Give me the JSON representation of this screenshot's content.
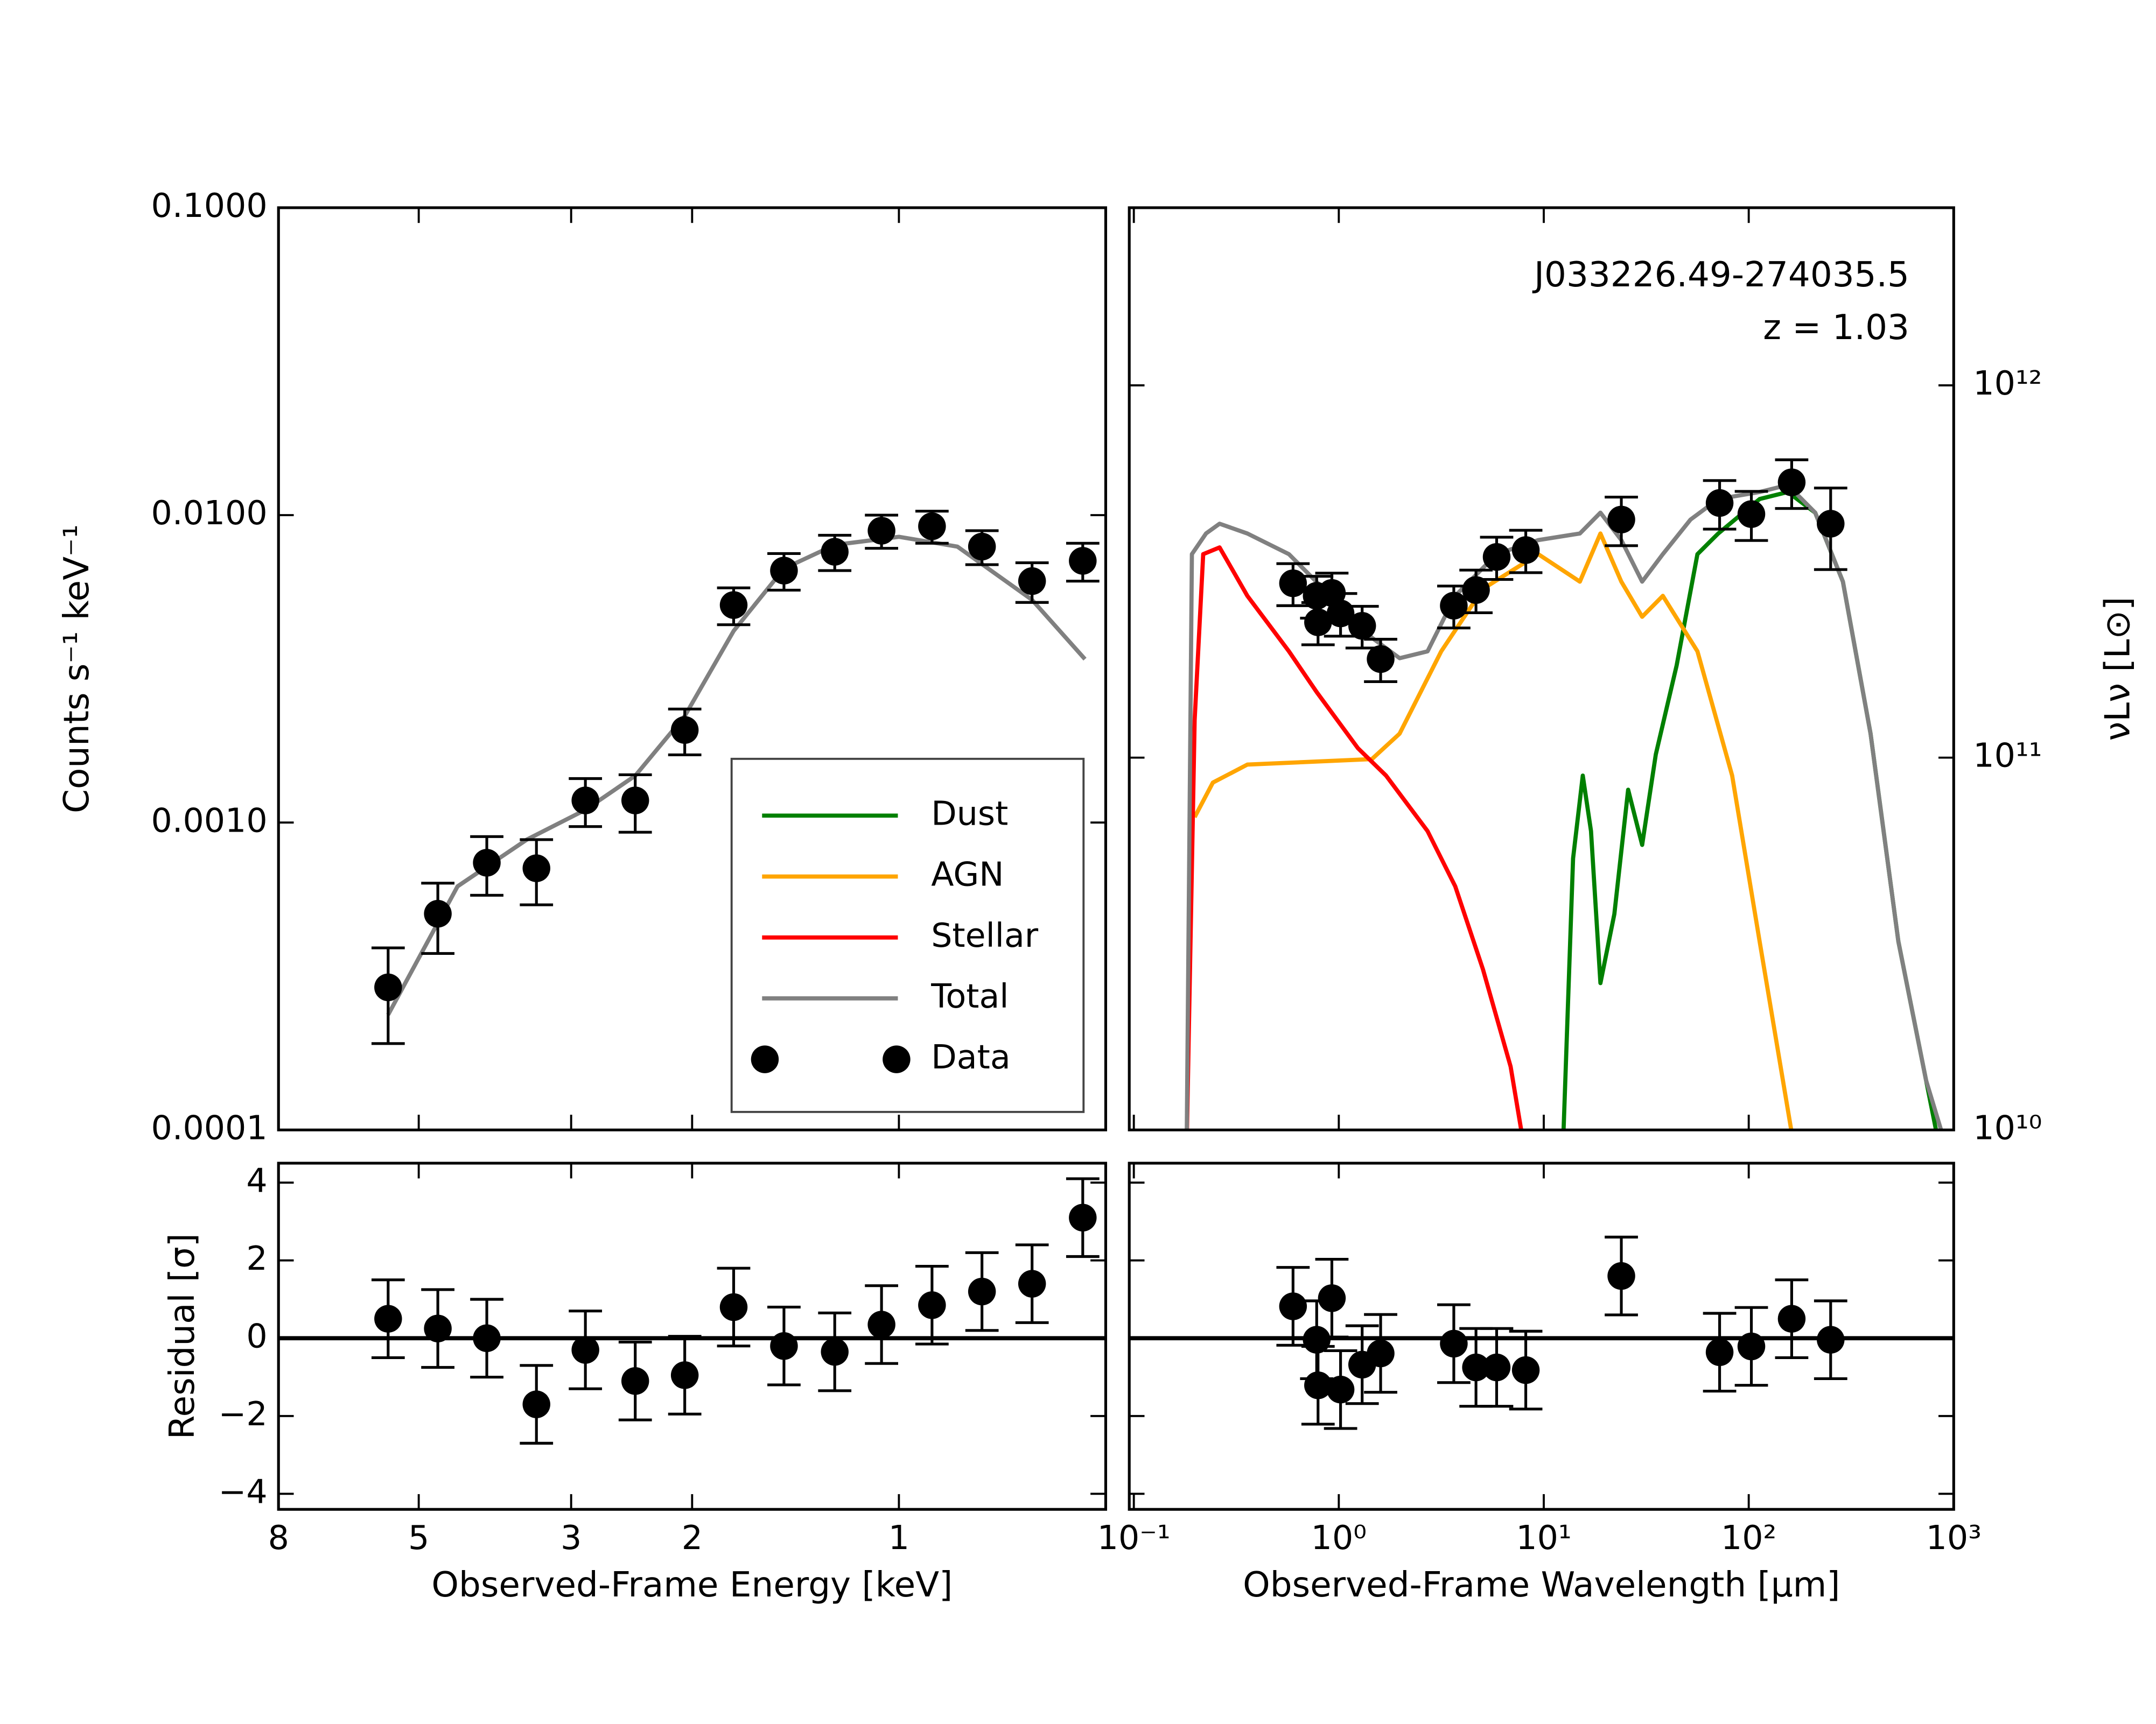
{
  "chart_data": [
    {
      "type": "scatter",
      "ylabel": "Counts s⁻¹ keV⁻¹",
      "log_x": true,
      "log_y": true,
      "xlim": [
        8,
        0.5
      ],
      "xticks": [
        8,
        5,
        3,
        2,
        1
      ],
      "ylim": [
        0.0001,
        0.1
      ],
      "yticks": [
        {
          "value": 0.0001,
          "label": "0.0001"
        },
        {
          "value": 0.001,
          "label": "0.0010"
        },
        {
          "value": 0.01,
          "label": "0.0100"
        },
        {
          "value": 0.1,
          "label": "0.1000"
        }
      ],
      "series": [
        {
          "color": "#808080",
          "x": [
            5.54,
            4.39,
            3.48,
            2.86,
            2.42,
            2.05,
            1.74,
            1.47,
            1.24,
            1.0,
            0.822,
            0.64,
            0.536
          ],
          "values": [
            0.000237,
            0.00062,
            0.00088,
            0.0011,
            0.00142,
            0.00222,
            0.0042,
            0.0067,
            0.008,
            0.0085,
            0.0079,
            0.0053,
            0.0034
          ]
        }
      ],
      "points": {
        "color": "#000000",
        "x": [
          5.54,
          4.69,
          3.98,
          3.37,
          2.86,
          2.42,
          2.05,
          1.74,
          1.47,
          1.24,
          1.06,
          0.895,
          0.757,
          0.64,
          0.54
        ],
        "values": [
          0.000291,
          0.000505,
          0.00074,
          0.00071,
          0.00118,
          0.00118,
          0.002,
          0.0051,
          0.0066,
          0.0076,
          0.0089,
          0.0092,
          0.0079,
          0.0061,
          0.0071
        ],
        "errors": [
          0.0001,
          0.00013,
          0.00016,
          0.00017,
          0.00021,
          0.00025,
          0.00034,
          0.0007,
          0.0009,
          0.001,
          0.0011,
          0.0011,
          0.001,
          0.0009,
          0.001
        ]
      }
    },
    {
      "type": "scatter",
      "ylabel": "νLν [L⊙]",
      "yaxis": "right",
      "log_x": true,
      "log_y": true,
      "legend": "lower right",
      "annotations": [
        "J033226.49-274035.5",
        "z = 1.03"
      ],
      "xlim": [
        0.095,
        1000
      ],
      "xticks": [
        0.1,
        1,
        10,
        100,
        1000
      ],
      "ylim": [
        10000000000.0,
        3000000000000.0
      ],
      "yticks": [
        {
          "value": 10000000000.0,
          "label": "10¹⁰"
        },
        {
          "value": 100000000000.0,
          "label": "10¹¹"
        },
        {
          "value": 1000000000000.0,
          "label": "10¹²"
        }
      ],
      "series": [
        {
          "name": "Dust",
          "color": "#008000",
          "x": [
            12.4,
            13.9,
            15.5,
            17.0,
            18.9,
            22.1,
            25.8,
            30.2,
            35.2,
            44.5,
            56.2,
            71.0,
            113,
            155,
            211,
            288,
            393,
            537,
            733,
            855
          ],
          "values": [
            8900000000.0,
            53600000000.0,
            89500000000.0,
            63500000000.0,
            24800000000.0,
            38000000000.0,
            82000000000.0,
            58300000000.0,
            102000000000.0,
            177000000000.0,
            352000000000.0,
            400000000000.0,
            495000000000.0,
            517000000000.0,
            455000000000.0,
            297000000000.0,
            116000000000.0,
            32100000000.0,
            13600000000.0,
            8900000000.0
          ]
        },
        {
          "name": "AGN",
          "color": "#ffa500",
          "x": [
            0.198,
            0.243,
            0.358,
            1.45,
            1.98,
            3.16,
            5.05,
            9.4,
            15.0,
            18.9,
            23.9,
            30.2,
            38.1,
            56.2,
            83.0,
            113,
            167
          ],
          "values": [
            69200000000.0,
            85700000000.0,
            95800000000.0,
            99100000000.0,
            116000000000.0,
            193000000000.0,
            284000000000.0,
            352000000000.0,
            297000000000.0,
            400000000000.0,
            297000000000.0,
            239000000000.0,
            272000000000.0,
            193000000000.0,
            89500000000.0,
            32100000000.0,
            8900000000.0
          ]
        },
        {
          "name": "Stellar",
          "color": "#ff0000",
          "x": [
            0.181,
            0.198,
            0.218,
            0.262,
            0.358,
            0.571,
            0.78,
            1.24,
            1.7,
            2.71,
            3.7,
            5.05,
            6.89,
            8.04
          ],
          "values": [
            8900000000.0,
            126000000000.0,
            352000000000.0,
            367000000000.0,
            272000000000.0,
            193000000000.0,
            150000000000.0,
            106000000000.0,
            89500000000.0,
            63500000000.0,
            45100000000.0,
            27000000000.0,
            14800000000.0,
            8900000000.0
          ]
        },
        {
          "name": "Total",
          "color": "#808080",
          "x": [
            0.181,
            0.192,
            0.225,
            0.262,
            0.358,
            0.571,
            0.91,
            1.45,
            1.98,
            2.71,
            3.7,
            5.89,
            9.4,
            15.0,
            18.9,
            23.9,
            30.2,
            38.1,
            52.0,
            71.0,
            113,
            155,
            211,
            288,
            393,
            537,
            733,
            925
          ],
          "values": [
            8900000000.0,
            352000000000.0,
            400000000000.0,
            425000000000.0,
            400000000000.0,
            352000000000.0,
            272000000000.0,
            210000000000.0,
            185000000000.0,
            193000000000.0,
            272000000000.0,
            352000000000.0,
            384000000000.0,
            400000000000.0,
            455000000000.0,
            384000000000.0,
            297000000000.0,
            352000000000.0,
            436000000000.0,
            495000000000.0,
            517000000000.0,
            540000000000.0,
            455000000000.0,
            297000000000.0,
            116000000000.0,
            32100000000.0,
            13600000000.0,
            8900000000.0
          ]
        }
      ],
      "points": {
        "name": "Data",
        "color": "#000000",
        "x": [
          0.598,
          0.78,
          0.792,
          0.925,
          1.02,
          1.3,
          1.6,
          3.64,
          4.67,
          5.89,
          8.17,
          23.9,
          72.1,
          103,
          162,
          251
        ],
        "values": [
          294000000000.0,
          272000000000.0,
          231000000000.0,
          277000000000.0,
          244000000000.0,
          226000000000.0,
          184000000000.0,
          256000000000.0,
          282000000000.0,
          346000000000.0,
          361000000000.0,
          436000000000.0,
          483000000000.0,
          451000000000.0,
          549000000000.0,
          425000000000.0
        ],
        "errors": [
          38000000000.0,
          35000000000.0,
          30000000000.0,
          36000000000.0,
          32000000000.0,
          29000000000.0,
          24000000000.0,
          33000000000.0,
          37000000000.0,
          45000000000.0,
          47000000000.0,
          65000000000.0,
          72000000000.0,
          68000000000.0,
          82000000000.0,
          105000000000.0
        ]
      }
    },
    {
      "type": "scatter",
      "ylabel": "Residual [σ]",
      "xlabel": "Observed-Frame Energy [keV]",
      "log_x": true,
      "zero_line": true,
      "xlim": [
        8,
        0.5
      ],
      "xticks": [
        8,
        5,
        3,
        2,
        1
      ],
      "ylim": [
        -4.4,
        4.5
      ],
      "yticks": [
        {
          "value": -4,
          "label": "−4"
        },
        {
          "value": -2,
          "label": "−2"
        },
        0,
        2,
        4
      ],
      "points": {
        "color": "#000000",
        "x": [
          5.54,
          4.69,
          3.98,
          3.37,
          2.86,
          2.42,
          2.05,
          1.74,
          1.47,
          1.24,
          1.06,
          0.895,
          0.757,
          0.64,
          0.54
        ],
        "values": [
          0.5,
          0.25,
          0.0,
          -1.7,
          -0.3,
          -1.1,
          -0.95,
          0.8,
          -0.2,
          -0.35,
          0.35,
          0.85,
          1.2,
          1.4,
          3.1
        ],
        "errors": [
          1,
          1,
          1,
          1,
          1,
          1,
          1,
          1,
          1,
          1,
          1,
          1,
          1,
          1,
          1
        ]
      }
    },
    {
      "type": "scatter",
      "xlabel": "Observed-Frame Wavelength [μm]",
      "log_x": true,
      "zero_line": true,
      "ytick_labels": false,
      "xlim": [
        0.095,
        1000
      ],
      "xticks": [
        {
          "value": 0.1,
          "label": "10⁻¹"
        },
        {
          "value": 1,
          "label": "10⁰"
        },
        {
          "value": 10,
          "label": "10¹"
        },
        {
          "value": 100,
          "label": "10²"
        },
        {
          "value": 1000,
          "label": "10³"
        }
      ],
      "ylim": [
        -4.4,
        4.5
      ],
      "yticks": [
        -4,
        -2,
        0,
        2,
        4
      ],
      "points": {
        "color": "#000000",
        "x": [
          0.598,
          0.78,
          0.792,
          0.925,
          1.02,
          1.3,
          1.6,
          3.64,
          4.67,
          5.89,
          8.17,
          23.9,
          72.1,
          103,
          162,
          251
        ],
        "values": [
          0.82,
          -0.04,
          -1.21,
          1.03,
          -1.32,
          -0.68,
          -0.39,
          -0.14,
          -0.75,
          -0.75,
          -0.82,
          1.6,
          -0.36,
          -0.21,
          0.5,
          -0.04
        ],
        "errors": [
          1,
          1,
          1,
          1,
          1,
          1,
          1,
          1,
          1,
          1,
          1,
          1,
          1,
          1,
          1,
          1
        ]
      }
    }
  ]
}
